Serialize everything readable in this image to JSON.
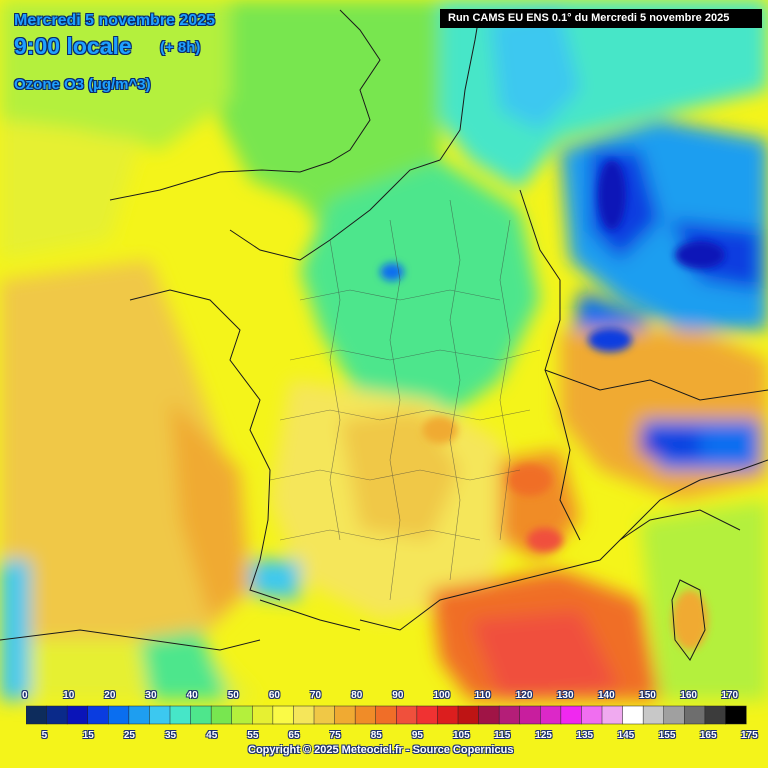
{
  "header": {
    "date": "Mercredi 5 novembre 2025",
    "hour": "9:00 locale",
    "lead": "(+ 8h)",
    "parameter": "Ozone O3 (µg/m^3)"
  },
  "run_label": "Run CAMS EU ENS 0.1° du Mercredi 5 novembre 2025",
  "legend": {
    "top_ticks": [
      "0",
      "10",
      "20",
      "30",
      "40",
      "50",
      "60",
      "70",
      "80",
      "90",
      "100",
      "110",
      "120",
      "130",
      "140",
      "150",
      "160",
      "170"
    ],
    "bottom_ticks": [
      "5",
      "15",
      "25",
      "35",
      "45",
      "55",
      "65",
      "75",
      "85",
      "95",
      "105",
      "115",
      "125",
      "135",
      "145",
      "155",
      "165",
      "175"
    ],
    "colors": [
      "#0d2c5c",
      "#0a2a8a",
      "#0a14b8",
      "#0a3ce0",
      "#0a6ef0",
      "#1e9ef0",
      "#3cc8f0",
      "#46e6c8",
      "#4ee68c",
      "#78e650",
      "#b4f03c",
      "#e6f032",
      "#fafa46",
      "#f5e65a",
      "#f0c846",
      "#f0aa32",
      "#f08c28",
      "#f06e28",
      "#f0503c",
      "#f03232",
      "#dc1e1e",
      "#be1414",
      "#a01446",
      "#b41e78",
      "#c81e9e",
      "#dc28c8",
      "#f028f0",
      "#f06ef0",
      "#f0aaf0",
      "#ffffff",
      "#c8c8c8",
      "#a0a0a0",
      "#6e6e6e",
      "#3c3c3c",
      "#000000"
    ]
  },
  "credit": "Copyright © 2025 Meteociel.fr - Source Copernicus"
}
